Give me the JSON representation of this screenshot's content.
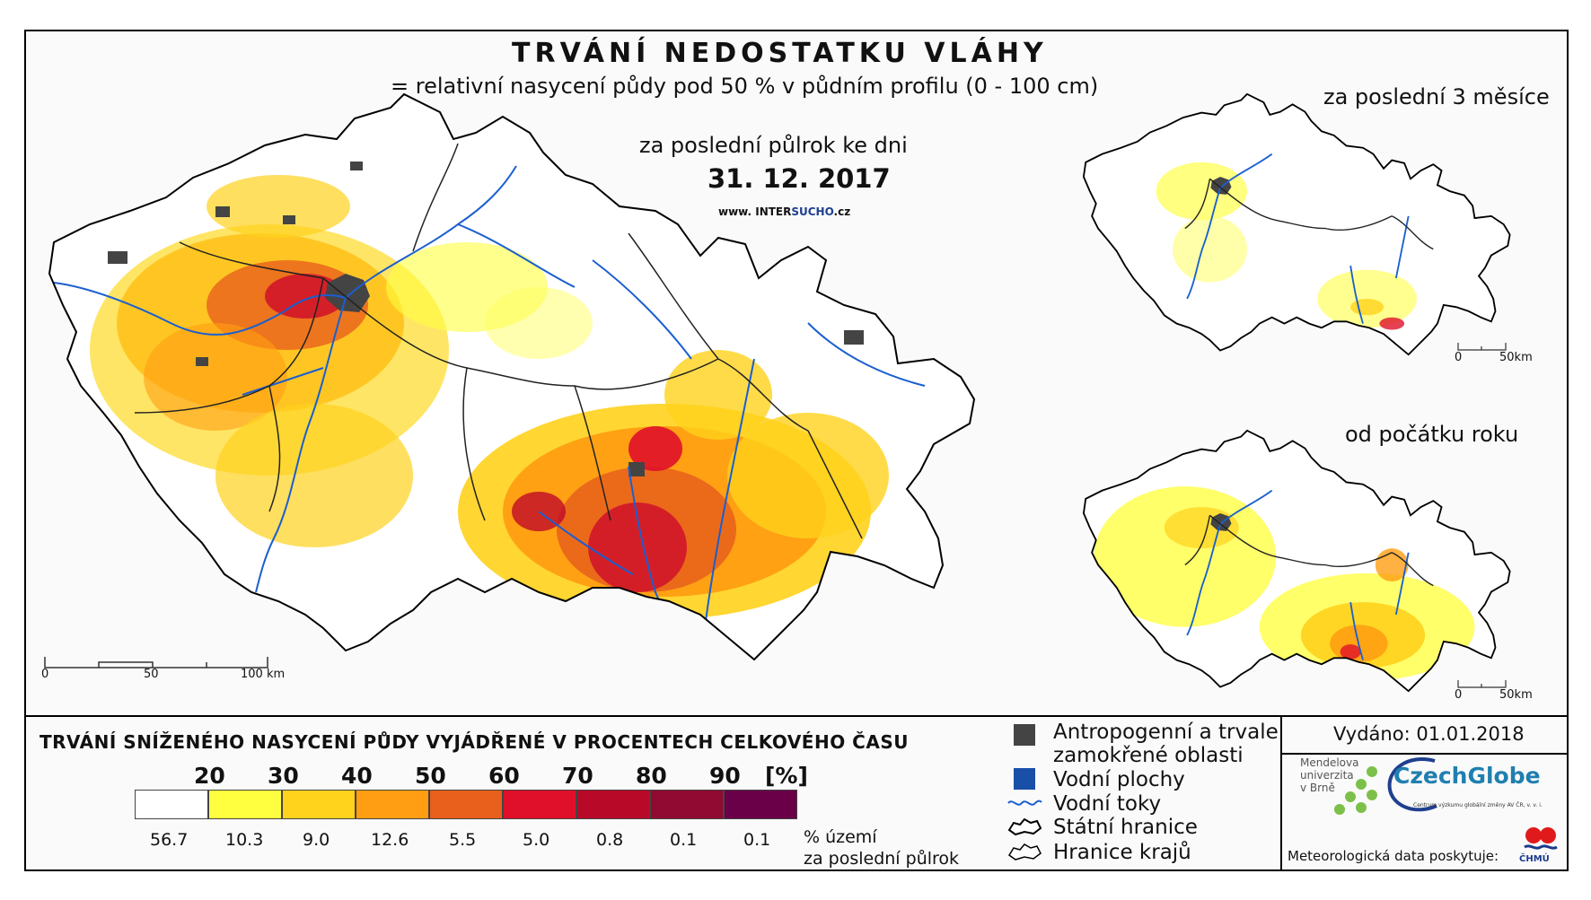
{
  "map": {
    "title": "TRVÁNÍ NEDOSTATKU VLÁHY",
    "subtitle": "= relativní nasycení půdy pod 50 % v půdním profilu (0 - 100 cm)",
    "period": "za poslední půlrok ke dni",
    "date": "31. 12. 2017",
    "website_prefix": "www. INTER",
    "website_brand": "SUCHO",
    "website_suffix": ".cz",
    "scale": {
      "zero": "0",
      "mid": "50",
      "end": "100 km"
    }
  },
  "insets": [
    {
      "label": "za poslední 3 měsíce",
      "scale_zero": "0",
      "scale_end": "50km"
    },
    {
      "label": "od počátku roku",
      "scale_zero": "0",
      "scale_end": "50km"
    }
  ],
  "legend": {
    "title": "TRVÁNÍ SNÍŽENÉHO NASYCENÍ PŮDY VYJÁDŘENÉ V PROCENTECH CELKOVÉHO ČASU",
    "unit": "[%]",
    "ticks": [
      "20",
      "30",
      "40",
      "50",
      "60",
      "70",
      "80",
      "90"
    ],
    "classes": [
      {
        "color": "#ffffff",
        "share": "56.7"
      },
      {
        "color": "#ffff40",
        "share": "10.3"
      },
      {
        "color": "#ffd21c",
        "share": "9.0"
      },
      {
        "color": "#ff9e12",
        "share": "12.6"
      },
      {
        "color": "#e8601c",
        "share": "5.5"
      },
      {
        "color": "#e0102a",
        "share": "5.0"
      },
      {
        "color": "#b80a28",
        "share": "0.8"
      },
      {
        "color": "#900a32",
        "share": "0.1"
      },
      {
        "color": "#6a0048",
        "share": "0.1"
      }
    ],
    "share_note_1": "% území",
    "share_note_2": "za poslední půlrok"
  },
  "key": {
    "urban_1": "Antropogenní a trvale",
    "urban_2": "zamokřené oblasti",
    "water_bodies": "Vodní plochy",
    "rivers": "Vodní toky",
    "borders": "Státní hranice",
    "regions": "Hranice krajů"
  },
  "footer": {
    "issued": "Vydáno: 01.01.2018",
    "mendel": [
      "Mendelova",
      "univerzita",
      "v Brně"
    ],
    "czechglobe": "CzechGlobe",
    "czechglobe_sub": "Centrum výzkumu globální změny AV ČR, v. v. i.",
    "meteo": "Meteorologická data poskytuje:",
    "chmu": "ČHMÚ"
  },
  "colors": {
    "urban": "#444444",
    "water": "#1a4fa8",
    "river": "#1a5fd0",
    "border": "#000000"
  }
}
